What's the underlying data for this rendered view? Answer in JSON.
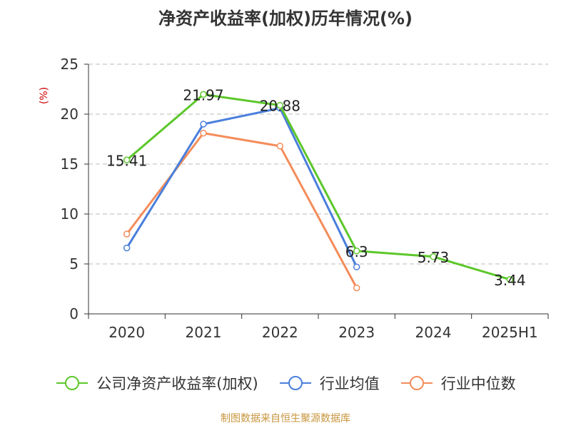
{
  "title": "净资产收益率(加权)历年情况(%)",
  "y_unit_label": "(%)",
  "source": "制图数据来自恒生聚源数据库",
  "chart_data": {
    "type": "line",
    "categories": [
      "2020",
      "2021",
      "2022",
      "2023",
      "2024",
      "2025H1"
    ],
    "ylim": [
      0,
      25
    ],
    "yticks": [
      0,
      5,
      10,
      15,
      20,
      25
    ],
    "grid": true,
    "legend_position": "bottom",
    "series": [
      {
        "name": "公司净资产收益率(加权)",
        "color": "#5cc72a",
        "values": [
          15.41,
          21.97,
          20.88,
          6.3,
          5.73,
          3.44
        ],
        "labels": [
          "15.41",
          "21.97",
          "20.88",
          "6.3",
          "5.73",
          "3.44"
        ]
      },
      {
        "name": "行业均值",
        "color": "#4a7fdc",
        "values": [
          6.6,
          19.0,
          20.6,
          4.7,
          null,
          null
        ]
      },
      {
        "name": "行业中位数",
        "color": "#f48c5a",
        "values": [
          8.0,
          18.1,
          16.8,
          2.6,
          null,
          null
        ]
      }
    ]
  }
}
